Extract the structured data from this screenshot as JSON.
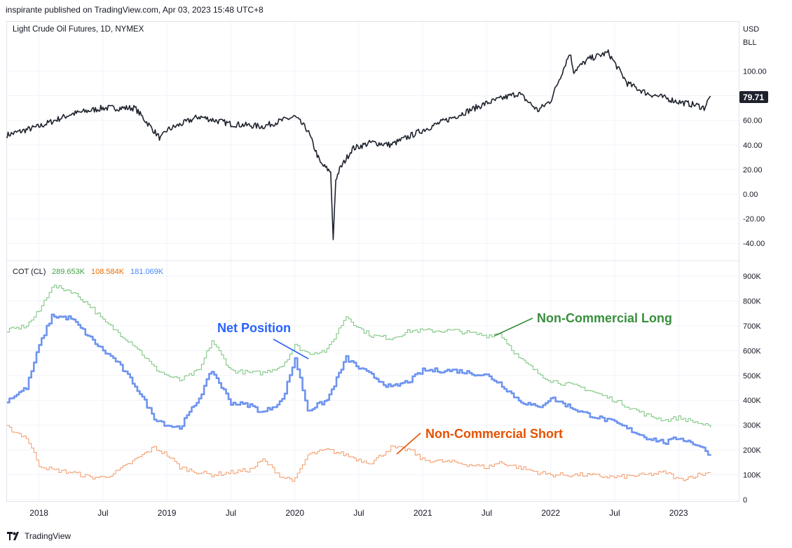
{
  "header": {
    "published_line": "inspirante published on TradingView.com, Apr 03, 2023 15:48 UTC+8"
  },
  "footer": {
    "brand": "TradingView"
  },
  "price_pane": {
    "title": "Light Crude Oil Futures, 1D, NYMEX",
    "currency": "USD",
    "unit": "BLL",
    "last_price_label": "79.71",
    "last_price_color": "#1e222d",
    "y_ticks": [
      "100.00",
      "80.00",
      "60.00",
      "40.00",
      "20.00",
      "0.00",
      "-20.00",
      "-40.00"
    ]
  },
  "cot_pane": {
    "title": "COT (CL)",
    "values": [
      {
        "text": "289.653K",
        "color": "#43a047"
      },
      {
        "text": "108.584K",
        "color": "#ef6c00"
      },
      {
        "text": "181.069K",
        "color": "#448aff"
      }
    ],
    "y_ticks": [
      "900K",
      "800K",
      "700K",
      "600K",
      "500K",
      "400K",
      "300K",
      "200K",
      "100K",
      "0"
    ]
  },
  "x_ticks": [
    "2018",
    "Jul",
    "2019",
    "Jul",
    "2020",
    "Jul",
    "2021",
    "Jul",
    "2022",
    "Jul",
    "2023"
  ],
  "annotations": {
    "net_position": {
      "text": "Net Position",
      "color": "#2962ff"
    },
    "non_commercial_long": {
      "text": "Non-Commercial Long",
      "color": "#388e3c"
    },
    "non_commercial_short": {
      "text": "Non-Commercial Short",
      "color": "#e65100"
    }
  },
  "colors": {
    "price_line": "#1e222d",
    "long_line": "#81c784",
    "short_line": "#f4a071",
    "net_line": "#6e94f0",
    "grid": "#f0f3fa"
  },
  "chart_data": [
    {
      "type": "line",
      "title": "Light Crude Oil Futures, 1D, NYMEX",
      "ylabel": "USD BLL",
      "ylim": [
        -45,
        125
      ],
      "x": [
        2017.75,
        2018.0,
        2018.25,
        2018.5,
        2018.75,
        2018.95,
        2019.0,
        2019.25,
        2019.5,
        2019.75,
        2020.0,
        2020.1,
        2020.2,
        2020.28,
        2020.3,
        2020.32,
        2020.35,
        2020.45,
        2020.6,
        2020.75,
        2021.0,
        2021.25,
        2021.5,
        2021.75,
        2021.9,
        2022.0,
        2022.15,
        2022.18,
        2022.3,
        2022.45,
        2022.6,
        2022.75,
        2022.9,
        2023.0,
        2023.15,
        2023.2,
        2023.25
      ],
      "values": [
        48,
        55,
        65,
        70,
        70,
        45,
        52,
        63,
        57,
        55,
        63,
        52,
        25,
        18,
        -37,
        12,
        20,
        37,
        42,
        40,
        52,
        63,
        74,
        82,
        68,
        76,
        115,
        100,
        110,
        115,
        90,
        82,
        78,
        75,
        72,
        70,
        79.71
      ]
    },
    {
      "type": "line",
      "title": "COT (CL)",
      "ylim": [
        0,
        900000
      ],
      "x": [
        2017.75,
        2017.9,
        2018.0,
        2018.1,
        2018.25,
        2018.4,
        2018.5,
        2018.6,
        2018.75,
        2018.9,
        2019.0,
        2019.1,
        2019.25,
        2019.35,
        2019.5,
        2019.65,
        2019.75,
        2019.9,
        2020.0,
        2020.1,
        2020.25,
        2020.4,
        2020.5,
        2020.6,
        2020.75,
        2020.9,
        2021.0,
        2021.25,
        2021.5,
        2021.6,
        2021.75,
        2021.9,
        2022.0,
        2022.25,
        2022.5,
        2022.75,
        2022.9,
        2023.0,
        2023.15,
        2023.25
      ],
      "series": [
        {
          "name": "Non-Commercial Long",
          "values": [
            680000,
            700000,
            760000,
            860000,
            840000,
            780000,
            720000,
            680000,
            620000,
            530000,
            500000,
            480000,
            520000,
            640000,
            520000,
            510000,
            510000,
            540000,
            620000,
            590000,
            600000,
            740000,
            690000,
            660000,
            650000,
            680000,
            680000,
            680000,
            660000,
            670000,
            570000,
            510000,
            480000,
            450000,
            400000,
            340000,
            320000,
            330000,
            310000,
            289653
          ]
        },
        {
          "name": "Non-Commercial Short",
          "values": [
            290000,
            250000,
            140000,
            120000,
            110000,
            90000,
            90000,
            110000,
            160000,
            210000,
            180000,
            130000,
            110000,
            100000,
            110000,
            120000,
            160000,
            90000,
            80000,
            180000,
            200000,
            180000,
            160000,
            150000,
            210000,
            200000,
            160000,
            150000,
            130000,
            150000,
            130000,
            110000,
            100000,
            100000,
            90000,
            100000,
            110000,
            80000,
            100000,
            108584
          ]
        },
        {
          "name": "Net Position",
          "values": [
            400000,
            450000,
            620000,
            740000,
            730000,
            650000,
            600000,
            560000,
            460000,
            330000,
            300000,
            290000,
            410000,
            520000,
            390000,
            380000,
            350000,
            400000,
            570000,
            360000,
            400000,
            570000,
            530000,
            500000,
            450000,
            480000,
            520000,
            520000,
            500000,
            470000,
            400000,
            370000,
            410000,
            350000,
            310000,
            250000,
            230000,
            250000,
            220000,
            181069
          ]
        }
      ]
    }
  ]
}
